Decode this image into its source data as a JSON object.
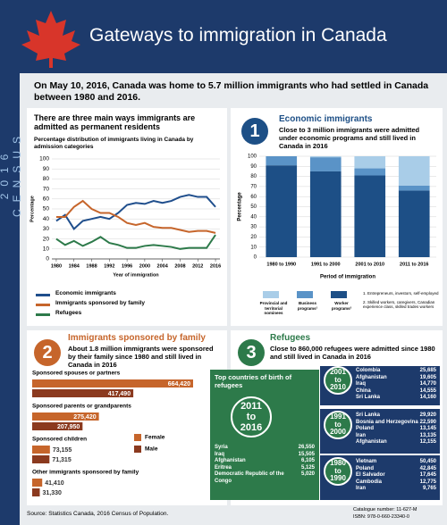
{
  "header": {
    "title": "Gateways to immigration in Canada",
    "side_label": "2016 CENSUS"
  },
  "intro": "On May 10, 2016, Canada was home to 5.7 million immigrants who had settled in Canada between 1980 and 2016.",
  "section_main": {
    "title": "There are three main ways immigrants are admitted as permanent residents"
  },
  "section_1": {
    "number": "1",
    "title": "Economic immigrants",
    "subtitle": "Close to 3 million immigrants were admitted under economic programs and still lived in Canada in 2016",
    "notes": [
      "1. Entrepreneurs, investors, self-employed",
      "2. Skilled workers, caregivers, Canadian experience class, skilled trades workers"
    ]
  },
  "section_2": {
    "number": "2",
    "title": "Immigrants sponsored by family",
    "subtitle": "About 1.8 million immigrants were sponsored by their family since 1980 and still lived in Canada in 2016"
  },
  "section_3": {
    "number": "3",
    "title": "Refugees",
    "subtitle": "Close to 860,000 refugees were admitted since 1980 and still lived in Canada in 2016",
    "top_title": "Top countries of birth of refugees",
    "periods": [
      {
        "period": "2011 to 2016",
        "countries": [
          {
            "country": "Syria",
            "count": "26,550"
          },
          {
            "country": "Iraq",
            "count": "15,505"
          },
          {
            "country": "Afghanistan",
            "count": "6,105"
          },
          {
            "country": "Eritrea",
            "count": "5,125"
          },
          {
            "country": "Democratic Republic of the Congo",
            "count": "5,020"
          }
        ]
      },
      {
        "period": "2001 to 2010",
        "countries": [
          {
            "country": "Colombia",
            "count": "25,685"
          },
          {
            "country": "Afghanistan",
            "count": "19,605"
          },
          {
            "country": "Iraq",
            "count": "14,770"
          },
          {
            "country": "China",
            "count": "14,555"
          },
          {
            "country": "Sri Lanka",
            "count": "14,160"
          }
        ]
      },
      {
        "period": "1991 to 2000",
        "countries": [
          {
            "country": "Sri Lanka",
            "count": "29,920"
          },
          {
            "country": "Bosnia and Herzegovina",
            "count": "22,590"
          },
          {
            "country": "Poland",
            "count": "13,145"
          },
          {
            "country": "Iran",
            "count": "13,135"
          },
          {
            "country": "Afghanistan",
            "count": "12,155"
          }
        ]
      },
      {
        "period": "1980 to 1990",
        "countries": [
          {
            "country": "Vietnam",
            "count": "50,450"
          },
          {
            "country": "Poland",
            "count": "42,845"
          },
          {
            "country": "El Salvador",
            "count": "17,645"
          },
          {
            "country": "Cambodia",
            "count": "12,775"
          },
          {
            "country": "Iran",
            "count": "9,765"
          }
        ]
      }
    ]
  },
  "footer": {
    "source": "Source: Statistics Canada, 2016 Census of Population.",
    "catalogue": "Catalogue number: 11-627-M",
    "isbn": "ISBN: 978-0-660-23340-0"
  },
  "chart_data": [
    {
      "type": "line",
      "title": "Percentage distribution of immigrants living in Canada by admission categories",
      "x_label": "Year of immigration",
      "y_label": "Percentage",
      "x": [
        1980,
        1982,
        1984,
        1986,
        1988,
        1990,
        1992,
        1994,
        1996,
        1998,
        2000,
        2002,
        2004,
        2006,
        2008,
        2010,
        2012,
        2014,
        2016
      ],
      "xlim": [
        1979,
        2017
      ],
      "xticks": [
        1980,
        1984,
        1988,
        1992,
        1996,
        2000,
        2004,
        2008,
        2012,
        2016
      ],
      "ylim": [
        0,
        100
      ],
      "yticks": [
        0,
        10,
        20,
        30,
        40,
        50,
        60,
        70,
        80,
        90,
        100
      ],
      "grid": true,
      "series": [
        {
          "name": "Economic immigrants",
          "color": "#1f4e8c",
          "values": [
            38,
            44,
            30,
            38,
            40,
            42,
            40,
            46,
            54,
            56,
            55,
            58,
            56,
            58,
            62,
            64,
            62,
            62,
            52
          ]
        },
        {
          "name": "Immigrants sponsored by family",
          "color": "#c6652b",
          "values": [
            42,
            42,
            52,
            58,
            50,
            46,
            46,
            42,
            36,
            34,
            36,
            32,
            31,
            31,
            29,
            27,
            28,
            28,
            26
          ]
        },
        {
          "name": "Refugees",
          "color": "#2d7a4a",
          "values": [
            20,
            14,
            18,
            13,
            17,
            22,
            16,
            14,
            11,
            11,
            13,
            14,
            13,
            12,
            10,
            11,
            11,
            11,
            24
          ]
        }
      ]
    },
    {
      "type": "stacked-bar",
      "x_label": "Period of immigration",
      "y_label": "Percentage",
      "categories": [
        "1980 to 1990",
        "1991 to 2000",
        "2001 to 2010",
        "2011 to 2016"
      ],
      "ylim": [
        0,
        100
      ],
      "yticks": [
        0,
        10,
        20,
        30,
        40,
        50,
        60,
        70,
        80,
        90,
        100
      ],
      "grid": true,
      "series": [
        {
          "name": "Provincial and territorial nominees",
          "color": "#a9cde8",
          "values": [
            0,
            1,
            12,
            29
          ]
        },
        {
          "name": "Business programs¹",
          "color": "#5a93c7",
          "values": [
            9,
            14,
            7,
            5
          ]
        },
        {
          "name": "Worker programs²",
          "color": "#1d4f86",
          "values": [
            91,
            85,
            81,
            66
          ]
        }
      ]
    },
    {
      "type": "hbar",
      "categories": [
        "Sponsored spouses or partners",
        "Sponsored parents or grandparents",
        "Sponsored children",
        "Other immigrants sponsored by family"
      ],
      "series": [
        {
          "name": "Female",
          "color": "#c6652b",
          "values": [
            664420,
            275420,
            73155,
            41410
          ],
          "value_labels": [
            "664,420",
            "275,420",
            "73,155",
            "41,410"
          ]
        },
        {
          "name": "Male",
          "color": "#8b3a1f",
          "values": [
            417490,
            207950,
            71315,
            31330
          ],
          "value_labels": [
            "417,490",
            "207,950",
            "71,315",
            "31,330"
          ]
        }
      ]
    }
  ]
}
